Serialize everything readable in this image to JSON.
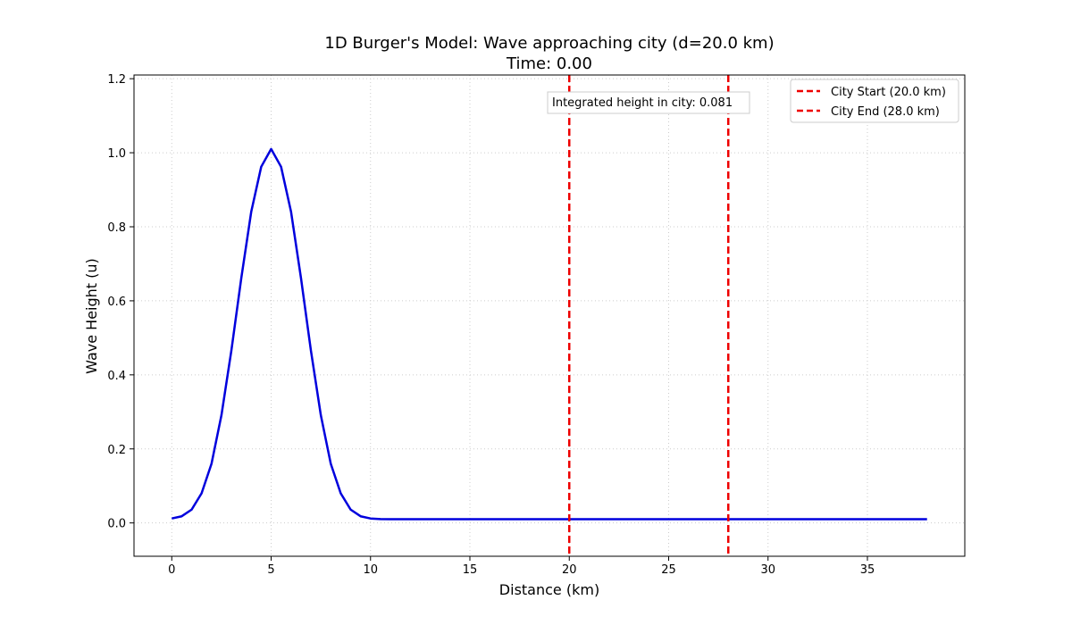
{
  "chart_data": {
    "type": "line",
    "title": "1D Burger's Model: Wave approaching city (d=20.0 km)",
    "subtitle": "Time: 0.00",
    "xlabel": "Distance (km)",
    "ylabel": "Wave Height (u)",
    "xlim": [
      -1.9,
      39.9
    ],
    "ylim": [
      -0.09,
      1.21
    ],
    "xticks": [
      0,
      5,
      10,
      15,
      20,
      25,
      30,
      35
    ],
    "yticks": [
      0.0,
      0.2,
      0.4,
      0.6,
      0.8,
      1.0,
      1.2
    ],
    "grid": true,
    "legend_position": "top-right",
    "series": [
      {
        "name": "",
        "color": "#0000dd",
        "x": [
          0,
          0.5,
          1.0,
          1.5,
          2.0,
          2.5,
          3.0,
          3.5,
          4.0,
          4.5,
          5.0,
          5.5,
          6.0,
          6.5,
          7.0,
          7.5,
          8.0,
          8.5,
          9.0,
          9.5,
          10.0,
          10.5,
          11.0,
          12.0,
          15.0,
          20.0,
          25.0,
          30.0,
          35.0,
          38.0
        ],
        "y": [
          0.012,
          0.018,
          0.036,
          0.08,
          0.16,
          0.291,
          0.466,
          0.662,
          0.841,
          0.962,
          1.01,
          0.962,
          0.841,
          0.662,
          0.466,
          0.291,
          0.16,
          0.08,
          0.036,
          0.018,
          0.012,
          0.0105,
          0.0101,
          0.01,
          0.01,
          0.01,
          0.01,
          0.01,
          0.01,
          0.01
        ]
      }
    ],
    "vlines": [
      {
        "name": "City Start (20.0 km)",
        "x": 20.0,
        "color": "#ee0000"
      },
      {
        "name": "City End (28.0 km)",
        "x": 28.0,
        "color": "#ee0000"
      }
    ],
    "annotation": "Integrated height in city: 0.081"
  }
}
